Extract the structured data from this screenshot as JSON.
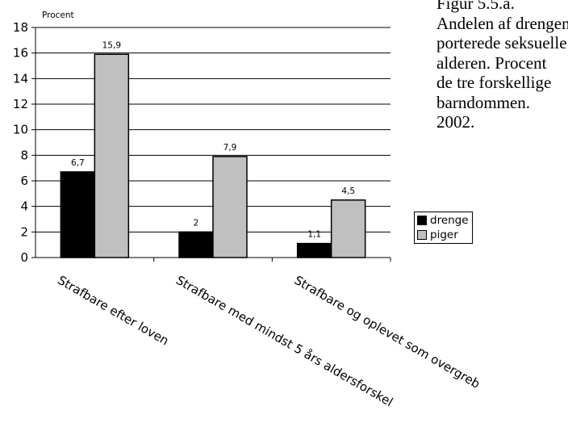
{
  "caption": {
    "lines": [
      "Figur 5.5.a.",
      "Andelen af drengene",
      "porterede seksuelle",
      "alderen. Procent",
      "de tre forskellige",
      "barndommen.",
      "2002."
    ]
  },
  "chart_data": {
    "type": "bar",
    "ylabel": "Procent",
    "ylim": [
      0,
      18
    ],
    "yticks": [
      0,
      2,
      4,
      6,
      8,
      10,
      12,
      14,
      16,
      18
    ],
    "grid": true,
    "legend_position": "right",
    "categories": [
      "Strafbare efter loven",
      "Strafbare med mindst 5 års aldersforskel",
      "Strafbare og oplevet som overgreb"
    ],
    "series": [
      {
        "name": "drenge",
        "color": "#000000",
        "values": [
          6.7,
          2,
          1.1
        ],
        "labels": [
          "6,7",
          "2",
          "1,1"
        ]
      },
      {
        "name": "piger",
        "color": "#c0c0c0",
        "values": [
          15.9,
          7.9,
          4.5
        ],
        "labels": [
          "15,9",
          "7,9",
          "4,5"
        ]
      }
    ]
  }
}
